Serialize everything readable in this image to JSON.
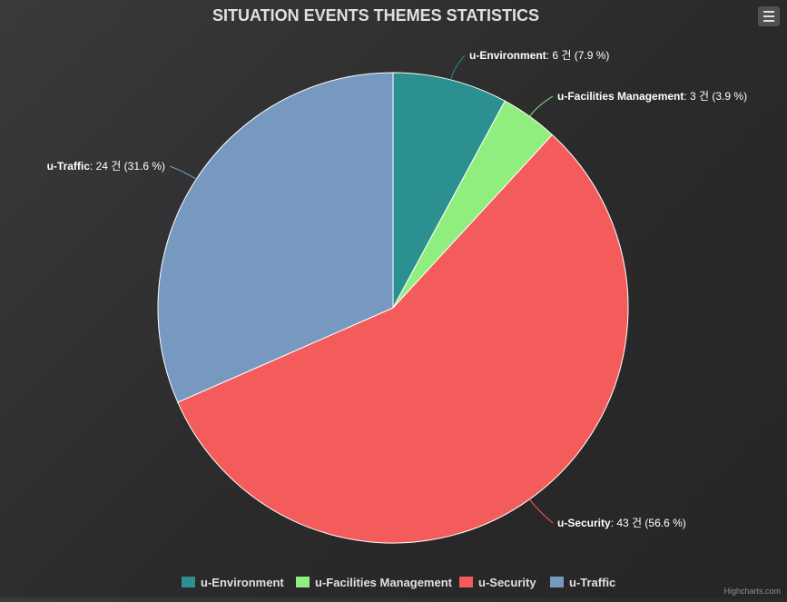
{
  "title": "SITUATION EVENTS THEMES STATISTICS",
  "credits": "Highcharts.com",
  "colors": {
    "title": "#e0e0e3",
    "slice_border": "#ffffff",
    "u-Environment": "#2b908f",
    "u-Facilities Management": "#90ee7e",
    "u-Security": "#f45b5b",
    "u-Traffic": "#7798bf"
  },
  "icons": {
    "export_menu": "hamburger-menu-icon"
  },
  "chart_data": {
    "type": "pie",
    "title": "SITUATION EVENTS THEMES STATISTICS",
    "unit": "건",
    "legend_position": "bottom-center",
    "slices": [
      {
        "name": "u-Environment",
        "value": 6,
        "percent": 7.9,
        "label_value": ": 6 건 (7.9 %)"
      },
      {
        "name": "u-Facilities Management",
        "value": 3,
        "percent": 3.9,
        "label_value": ": 3 건 (3.9 %)"
      },
      {
        "name": "u-Security",
        "value": 43,
        "percent": 56.6,
        "label_value": ": 43 건 (56.6 %)"
      },
      {
        "name": "u-Traffic",
        "value": 24,
        "percent": 31.6,
        "label_value": ": 24 건 (31.6 %)"
      }
    ]
  }
}
